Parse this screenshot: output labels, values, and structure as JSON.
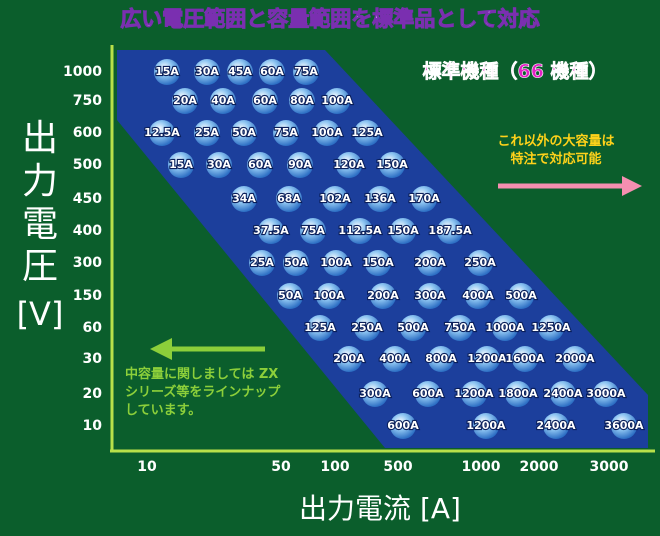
{
  "title": "広い電圧範囲と容量範囲を標準品として対応",
  "badge": "標準機種（66 機種）",
  "y_axis": {
    "label_lines": [
      "出",
      "力",
      "電",
      "圧",
      "[V]"
    ],
    "ticks": [
      "1000",
      "750",
      "600",
      "500",
      "450",
      "400",
      "300",
      "150",
      "60",
      "30",
      "20",
      "10"
    ]
  },
  "x_axis": {
    "label": "出力電流 [A]",
    "ticks": [
      "10",
      "50",
      "100",
      "500",
      "1000",
      "2000",
      "3000"
    ]
  },
  "rows": [
    [
      "15A",
      "30A",
      "45A",
      "60A",
      "75A"
    ],
    [
      "20A",
      "40A",
      "60A",
      "80A",
      "100A"
    ],
    [
      "12.5A",
      "25A",
      "50A",
      "75A",
      "100A",
      "125A"
    ],
    [
      "15A",
      "30A",
      "60A",
      "90A",
      "120A",
      "150A"
    ],
    [
      "34A",
      "68A",
      "102A",
      "136A",
      "170A"
    ],
    [
      "37.5A",
      "75A",
      "112.5A",
      "150A",
      "187.5A"
    ],
    [
      "25A",
      "50A",
      "100A",
      "150A",
      "200A",
      "250A"
    ],
    [
      "50A",
      "100A",
      "200A",
      "300A",
      "400A",
      "500A"
    ],
    [
      "125A",
      "250A",
      "500A",
      "750A",
      "1000A",
      "1250A"
    ],
    [
      "200A",
      "400A",
      "800A",
      "1200A",
      "1600A",
      "2000A"
    ],
    [
      "300A",
      "600A",
      "1200A",
      "1800A",
      "2400A",
      "3000A"
    ],
    [
      "600A",
      "1200A",
      "2400A",
      "3600A"
    ]
  ],
  "note_right": [
    "これ以外の大容量は",
    "特注で対応可能"
  ],
  "note_left": [
    "中容量に関しましては ZX",
    "シリーズ等をラインナップ",
    "しています。"
  ]
}
